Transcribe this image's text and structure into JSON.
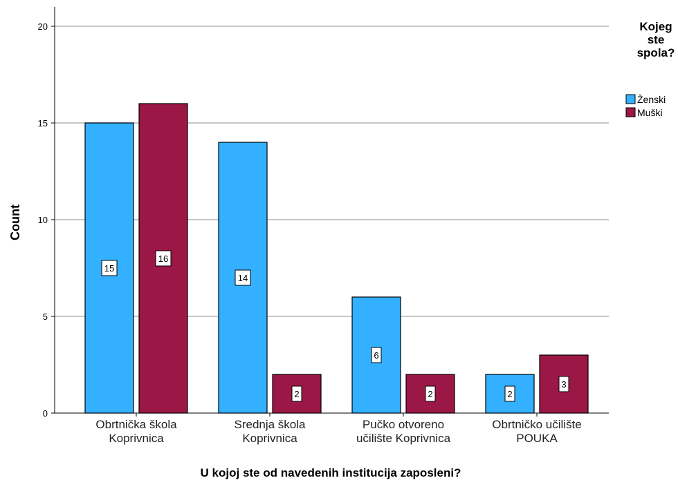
{
  "chart_data": {
    "type": "bar",
    "xlabel": "U kojoj ste od navedenih institucija zaposleni?",
    "ylabel": "Count",
    "ylim": [
      0,
      21
    ],
    "yticks": [
      0,
      5,
      10,
      15,
      20
    ],
    "grid": true,
    "legend_placement": "right",
    "legend_title": [
      "Kojeg",
      "ste",
      "spola?"
    ],
    "categories": [
      [
        "Obrtnička škola",
        "Koprivnica"
      ],
      [
        "Srednja škola",
        "Koprivnica"
      ],
      [
        "Pučko otvoreno",
        "učilište Koprivnica"
      ],
      [
        "Obrtničko učilište",
        "POUKA"
      ]
    ],
    "series": [
      {
        "name": "Ženski",
        "color": "#33b0ff",
        "values": [
          15,
          14,
          6,
          2
        ]
      },
      {
        "name": "Muški",
        "color": "#9b1746",
        "values": [
          16,
          2,
          2,
          3
        ]
      }
    ]
  }
}
